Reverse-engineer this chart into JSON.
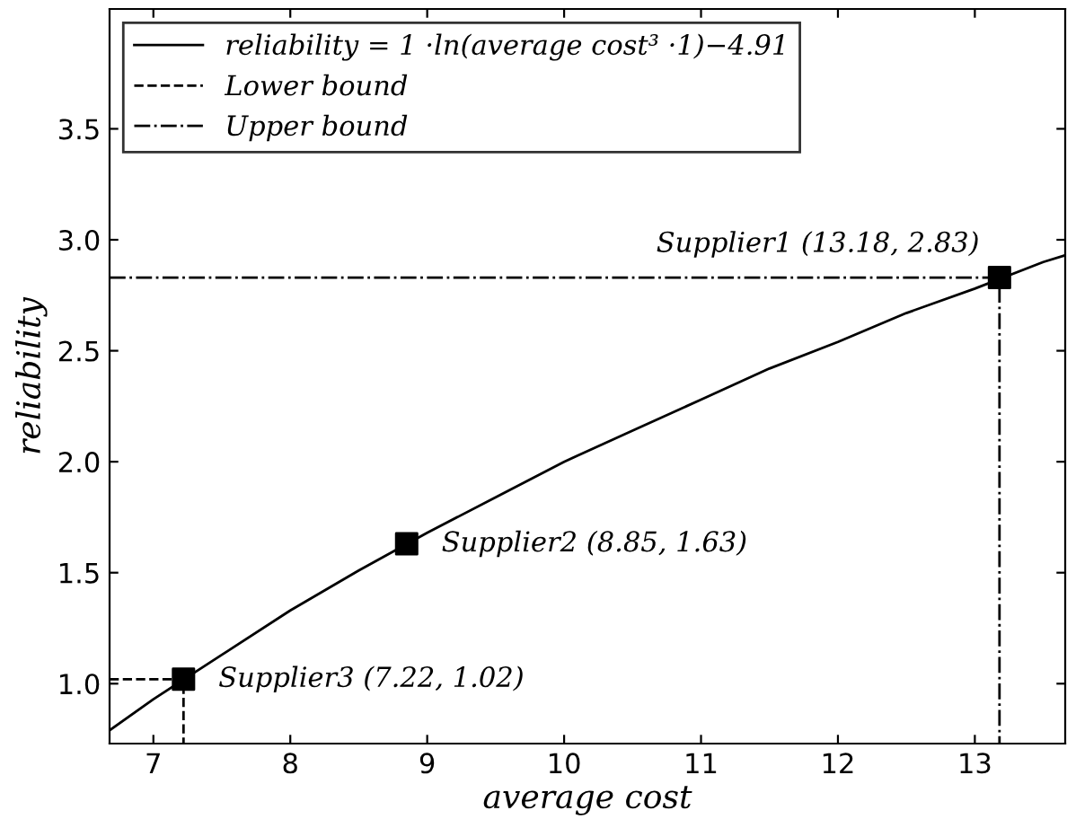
{
  "chart_data": {
    "type": "line",
    "xlabel": "average cost",
    "ylabel": "reliability",
    "xlim": [
      6.68,
      13.66
    ],
    "ylim": [
      0.73,
      4.04
    ],
    "xticks": [
      7,
      8,
      9,
      10,
      11,
      12,
      13
    ],
    "yticks": [
      {
        "value": 1.0,
        "label": "1.0"
      },
      {
        "value": 1.5,
        "label": "1.5"
      },
      {
        "value": 2.0,
        "label": "2.0"
      },
      {
        "value": 2.5,
        "label": "2.5"
      },
      {
        "value": 3.0,
        "label": "3.0"
      },
      {
        "value": 3.5,
        "label": "3.5"
      }
    ],
    "grid": false,
    "legend": "top left",
    "series": [
      {
        "name": "reliability = 1 ·ln(average cost³ ·1)−4.91",
        "color": "#000000",
        "line_style": "solid",
        "x": [
          6.68,
          7,
          7.5,
          8,
          8.5,
          9,
          9.5,
          10,
          10.5,
          11,
          11.5,
          12,
          12.5,
          13,
          13.5,
          13.66
        ],
        "values": [
          0.79,
          0.93,
          1.13,
          1.33,
          1.51,
          1.68,
          1.84,
          2.0,
          2.14,
          2.28,
          2.42,
          2.54,
          2.67,
          2.78,
          2.9,
          2.93
        ]
      },
      {
        "name": "Lower bound",
        "color": "#000000",
        "line_style": "dashed",
        "x": [
          6.68,
          7.22,
          7.22
        ],
        "values": [
          1.02,
          1.02,
          0.73
        ]
      },
      {
        "name": "Upper bound",
        "color": "#000000",
        "line_style": "dashdot",
        "x": [
          6.68,
          13.18,
          13.18
        ],
        "values": [
          2.83,
          2.83,
          0.73
        ]
      },
      {
        "type": "scatter",
        "marker": "square",
        "color": "#000000",
        "x": [
          13.18,
          8.85,
          7.22
        ],
        "values": [
          2.83,
          1.63,
          1.02
        ]
      }
    ],
    "annotations": [
      {
        "text": "Supplier1 (13.18, 2.83)",
        "x": 13.18,
        "y": 2.83
      },
      {
        "text": "Supplier2 (8.85, 1.63)",
        "x": 8.85,
        "y": 1.63
      },
      {
        "text": "Supplier3 (7.22, 1.02)",
        "x": 7.22,
        "y": 1.02
      }
    ]
  }
}
